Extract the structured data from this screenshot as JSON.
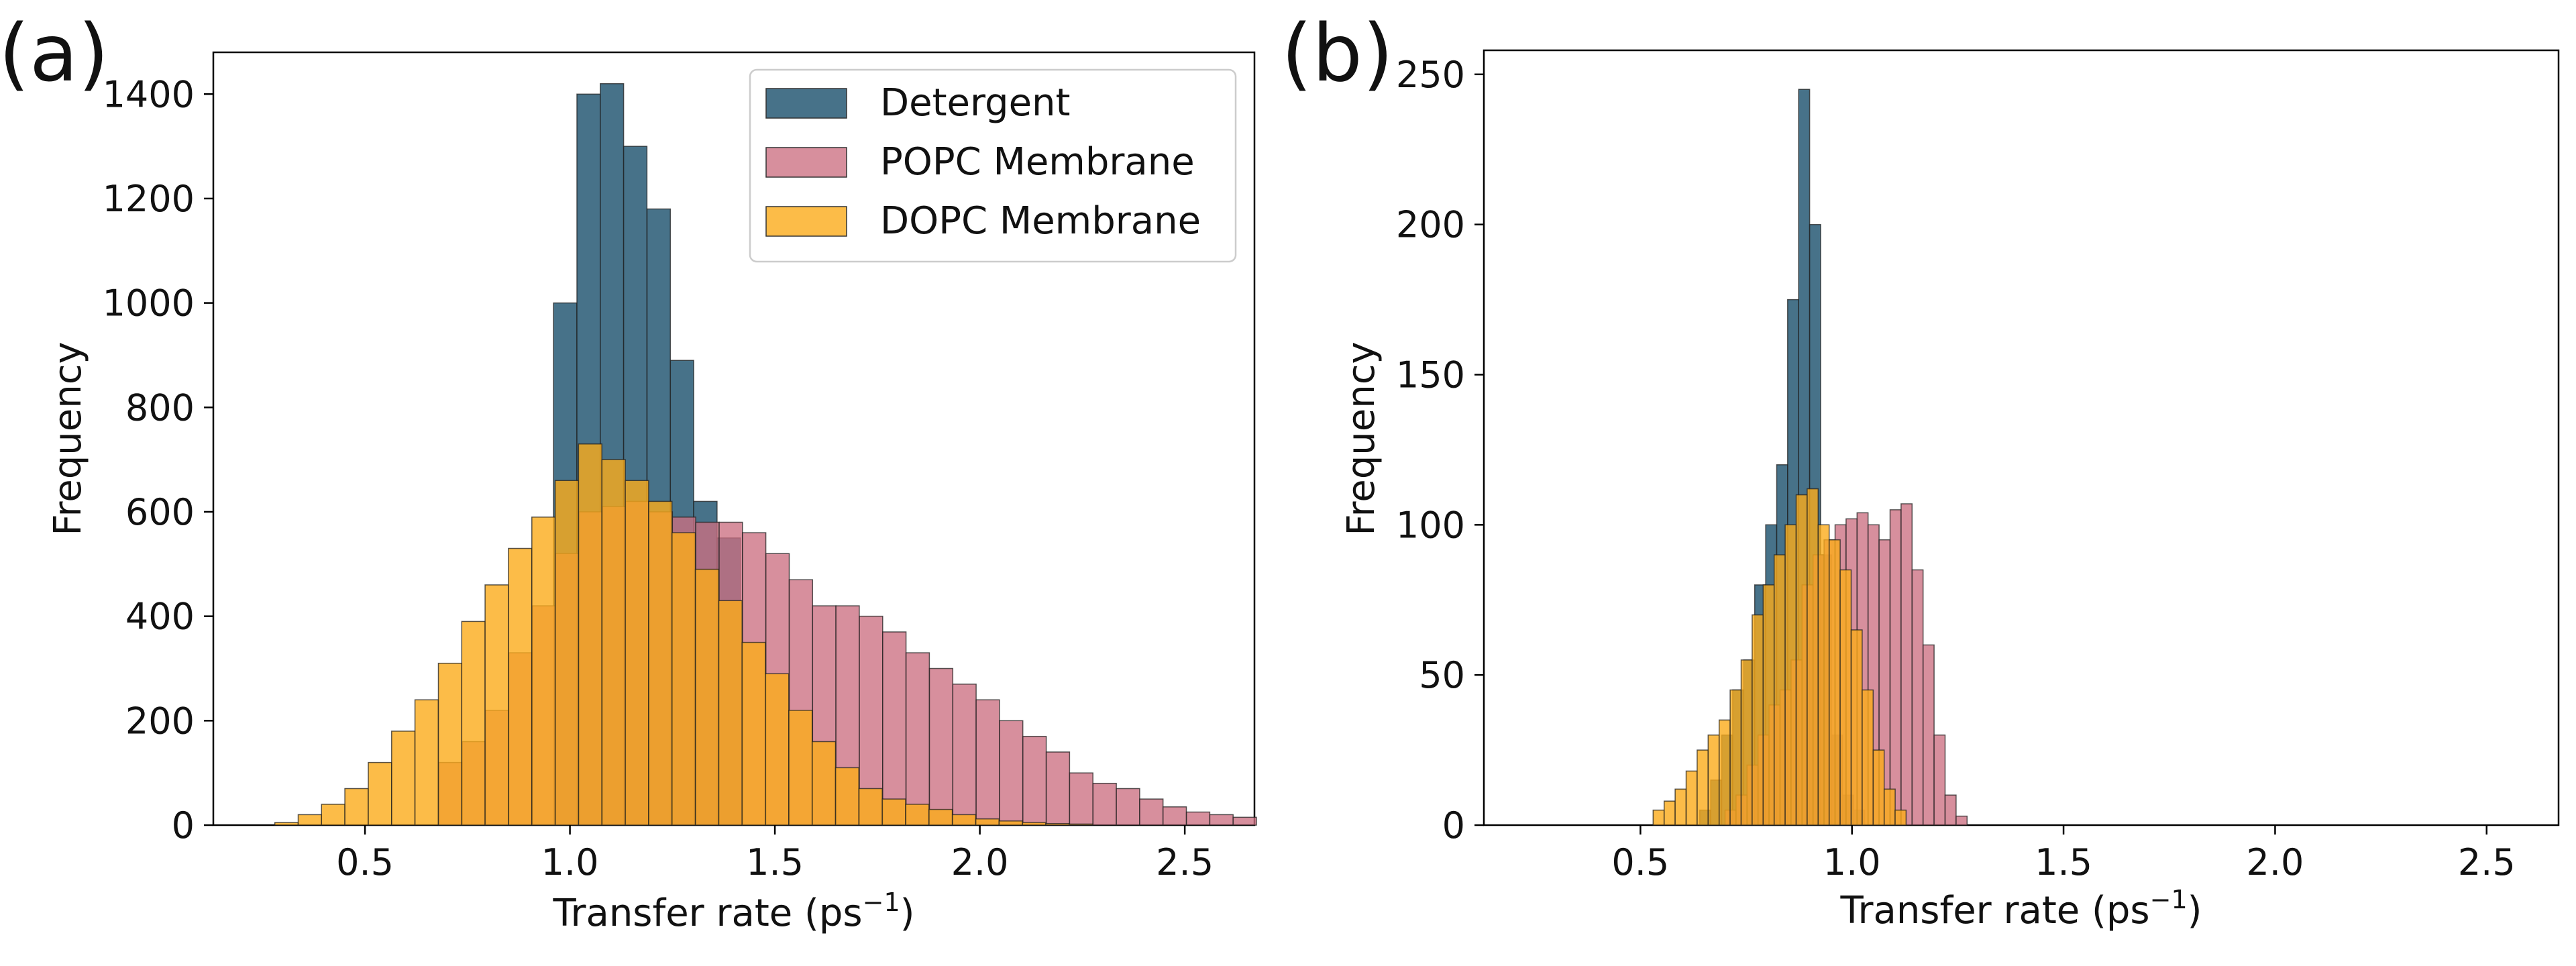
{
  "chart_data": [
    {
      "type": "histogram",
      "panel_label": "(a)",
      "xlabel": "Transfer rate (ps",
      "xlabel_sup": "−1",
      "xlabel_end": ")",
      "ylabel": "Frequency",
      "xlim": [
        0.13,
        2.67
      ],
      "ylim": [
        0,
        1480
      ],
      "xticks": [
        "0.5",
        "1.0",
        "1.5",
        "2.0",
        "2.5"
      ],
      "yticks": [
        "0",
        "200",
        "400",
        "600",
        "800",
        "1000",
        "1200",
        "1400"
      ],
      "legend_position": "top-right",
      "bin_width": 0.057,
      "series": [
        {
          "name": "Detergent",
          "color": "#2e5f79",
          "opacity": 0.88,
          "start": 0.96,
          "values": [
            1000,
            1400,
            1420,
            1300,
            1180,
            890,
            620,
            550
          ]
        },
        {
          "name": "POPC Membrane",
          "color": "#cc7081",
          "opacity": 0.78,
          "start": 0.68,
          "values": [
            120,
            160,
            220,
            330,
            420,
            520,
            600,
            610,
            620,
            600,
            590,
            580,
            580,
            560,
            520,
            470,
            420,
            420,
            400,
            370,
            330,
            300,
            270,
            240,
            200,
            170,
            140,
            100,
            80,
            70,
            50,
            35,
            25,
            20,
            15
          ]
        },
        {
          "name": "DOPC Membrane",
          "color": "#fbab1a",
          "opacity": 0.8,
          "start": 0.28,
          "values": [
            5,
            20,
            40,
            70,
            120,
            180,
            240,
            310,
            390,
            460,
            530,
            590,
            660,
            730,
            700,
            660,
            620,
            560,
            490,
            430,
            350,
            290,
            220,
            160,
            110,
            70,
            50,
            40,
            30,
            20,
            12,
            8,
            5,
            3,
            2
          ]
        }
      ]
    },
    {
      "type": "histogram",
      "panel_label": "(b)",
      "xlabel": "Transfer rate (ps",
      "xlabel_sup": "−1",
      "xlabel_end": ")",
      "ylabel": "Frequency",
      "xlim": [
        0.13,
        2.67
      ],
      "ylim": [
        0,
        258
      ],
      "xticks": [
        "0.5",
        "1.0",
        "1.5",
        "2.0",
        "2.5"
      ],
      "yticks": [
        "0",
        "50",
        "100",
        "150",
        "200",
        "250"
      ],
      "bin_width": 0.026,
      "series": [
        {
          "name": "Detergent",
          "color": "#2e5f79",
          "opacity": 0.88,
          "start": 0.64,
          "values": [
            5,
            15,
            30,
            45,
            55,
            80,
            100,
            120,
            175,
            245,
            200,
            90,
            30,
            10,
            5
          ]
        },
        {
          "name": "POPC Membrane",
          "color": "#cc7081",
          "opacity": 0.78,
          "start": 0.7,
          "values": [
            5,
            10,
            20,
            30,
            40,
            45,
            55,
            80,
            90,
            95,
            100,
            102,
            104,
            100,
            95,
            105,
            107,
            85,
            60,
            30,
            10,
            3
          ]
        },
        {
          "name": "DOPC Membrane",
          "color": "#fbab1a",
          "opacity": 0.8,
          "start": 0.53,
          "values": [
            5,
            8,
            12,
            18,
            25,
            30,
            35,
            45,
            55,
            70,
            80,
            90,
            100,
            110,
            112,
            100,
            95,
            85,
            65,
            45,
            25,
            12,
            5
          ]
        }
      ]
    }
  ]
}
